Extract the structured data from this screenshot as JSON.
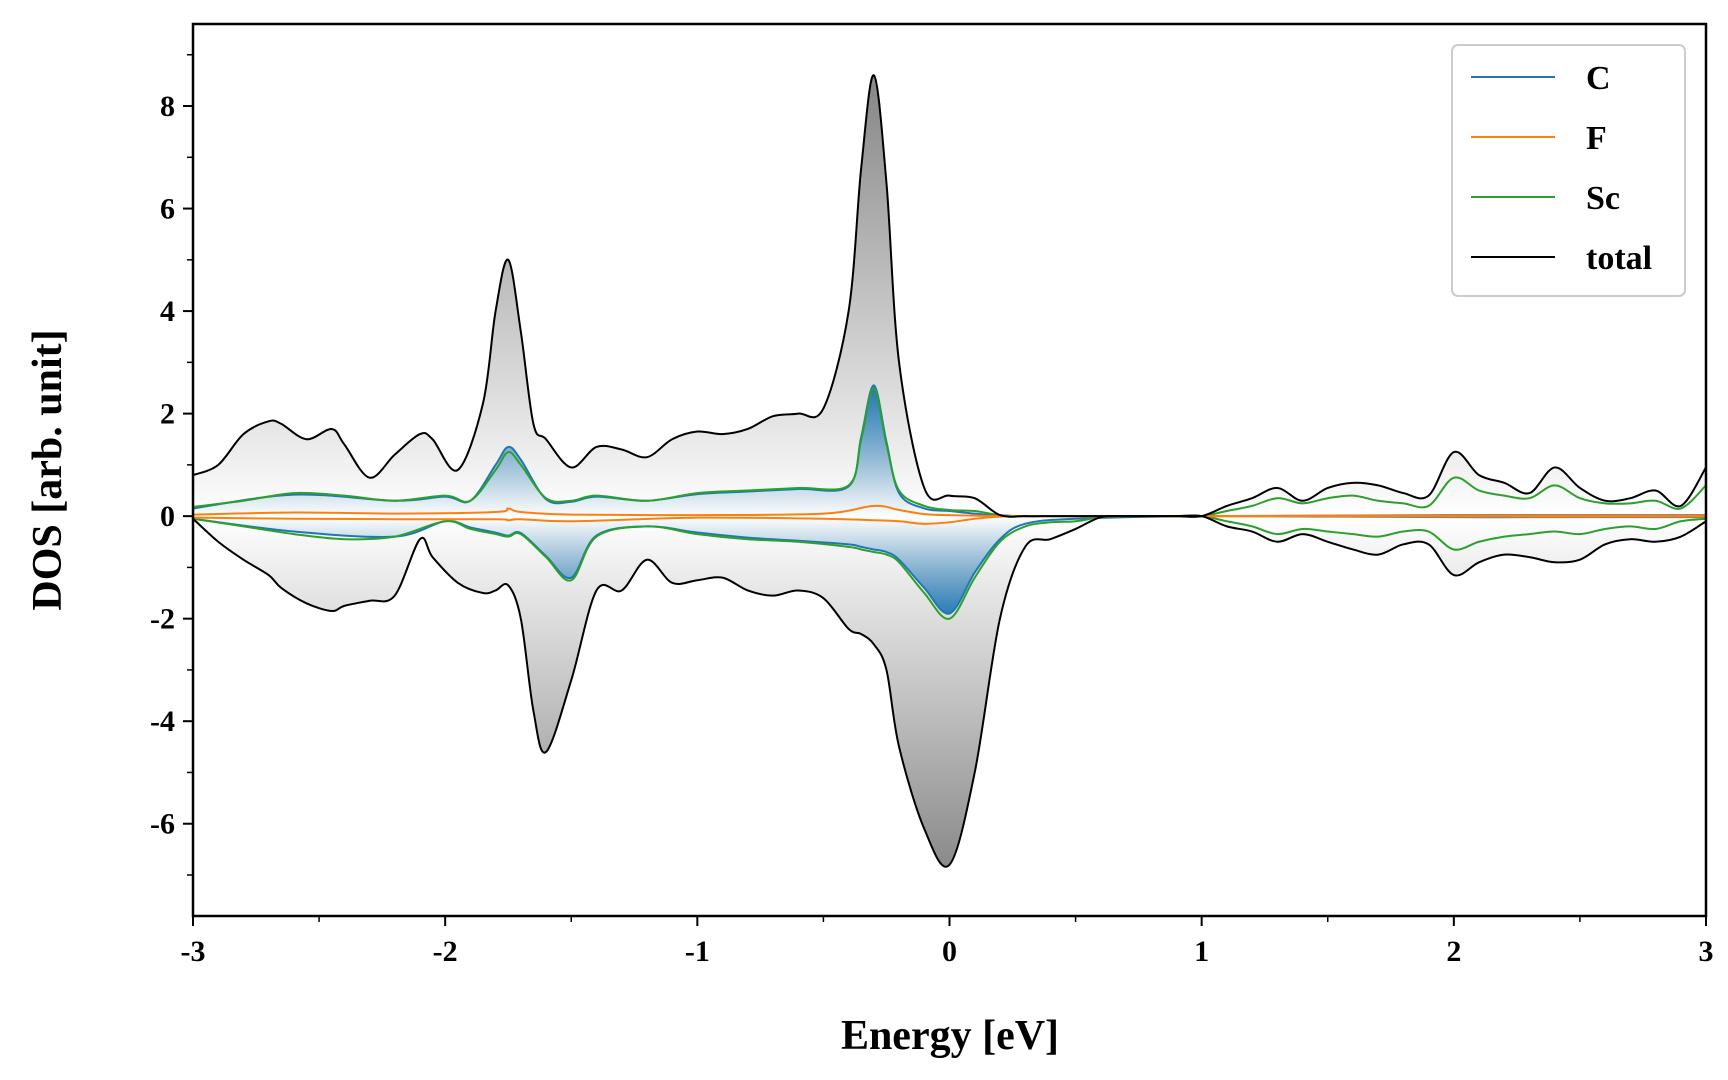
{
  "chart_data": {
    "type": "line",
    "title": "",
    "xlabel": "Energy [eV]",
    "ylabel": "DOS [arb. unit]",
    "xlim": [
      -3,
      3
    ],
    "ylim": [
      -7.8,
      9.6
    ],
    "xticks": [
      -3,
      -2,
      -1,
      0,
      1,
      2,
      3
    ],
    "xtick_labels": [
      "-3",
      "-2",
      "-1",
      "0",
      "1",
      "2",
      "3"
    ],
    "yticks": [
      -6,
      -4,
      -2,
      0,
      2,
      4,
      6,
      8
    ],
    "ytick_labels": [
      "-6",
      "-4",
      "-2",
      "0",
      "2",
      "4",
      "6",
      "8"
    ],
    "legend_position": "top-right",
    "grid": false,
    "colors": {
      "C": "#1f77b4",
      "F": "#ff7f0e",
      "Sc": "#2ca02c",
      "total": "#000000",
      "total_fill": "#8a8a8a"
    },
    "series": [
      {
        "name": "total",
        "x": [
          -3.0,
          -2.9,
          -2.8,
          -2.7,
          -2.65,
          -2.55,
          -2.45,
          -2.4,
          -2.3,
          -2.2,
          -2.1,
          -2.05,
          -1.95,
          -1.85,
          -1.8,
          -1.75,
          -1.7,
          -1.65,
          -1.6,
          -1.5,
          -1.4,
          -1.3,
          -1.2,
          -1.1,
          -1.0,
          -0.9,
          -0.8,
          -0.7,
          -0.6,
          -0.5,
          -0.4,
          -0.35,
          -0.3,
          -0.25,
          -0.2,
          -0.1,
          0.0,
          0.1,
          0.2,
          0.3,
          0.4,
          0.5,
          0.6,
          0.7,
          0.8,
          0.9,
          1.0,
          1.1,
          1.2,
          1.3,
          1.4,
          1.5,
          1.6,
          1.7,
          1.8,
          1.9,
          2.0,
          2.1,
          2.2,
          2.3,
          2.4,
          2.5,
          2.6,
          2.7,
          2.8,
          2.9,
          3.0
        ],
        "up": [
          0.8,
          1.0,
          1.6,
          1.85,
          1.8,
          1.5,
          1.7,
          1.4,
          0.75,
          1.2,
          1.6,
          1.5,
          0.9,
          2.2,
          4.0,
          5.0,
          3.6,
          1.8,
          1.5,
          0.95,
          1.35,
          1.3,
          1.15,
          1.5,
          1.65,
          1.6,
          1.7,
          1.95,
          2.0,
          2.1,
          4.0,
          6.8,
          8.6,
          6.5,
          3.0,
          0.55,
          0.4,
          0.35,
          0.02,
          0.0,
          0.0,
          0.0,
          0.0,
          0.0,
          0.0,
          0.0,
          0.0,
          0.2,
          0.35,
          0.55,
          0.3,
          0.55,
          0.65,
          0.6,
          0.45,
          0.4,
          1.25,
          0.8,
          0.65,
          0.45,
          0.95,
          0.55,
          0.3,
          0.35,
          0.5,
          0.2,
          0.95
        ],
        "down": [
          -0.05,
          -0.5,
          -0.85,
          -1.15,
          -1.4,
          -1.7,
          -1.85,
          -1.75,
          -1.65,
          -1.55,
          -0.45,
          -0.8,
          -1.3,
          -1.5,
          -1.45,
          -1.35,
          -2.0,
          -3.8,
          -4.6,
          -3.2,
          -1.45,
          -1.45,
          -0.85,
          -1.3,
          -1.25,
          -1.2,
          -1.45,
          -1.55,
          -1.45,
          -1.6,
          -2.2,
          -2.3,
          -2.5,
          -3.0,
          -4.5,
          -6.1,
          -6.8,
          -5.0,
          -2.0,
          -0.6,
          -0.45,
          -0.25,
          -0.02,
          0.0,
          0.0,
          0.0,
          0.0,
          -0.2,
          -0.3,
          -0.5,
          -0.35,
          -0.5,
          -0.65,
          -0.75,
          -0.55,
          -0.55,
          -1.15,
          -0.9,
          -0.75,
          -0.8,
          -0.9,
          -0.85,
          -0.55,
          -0.45,
          -0.5,
          -0.4,
          -0.1
        ]
      },
      {
        "name": "Sc",
        "x": [
          -3.0,
          -2.8,
          -2.6,
          -2.4,
          -2.2,
          -2.0,
          -1.9,
          -1.8,
          -1.75,
          -1.7,
          -1.6,
          -1.5,
          -1.4,
          -1.2,
          -1.0,
          -0.8,
          -0.6,
          -0.4,
          -0.35,
          -0.3,
          -0.25,
          -0.2,
          -0.1,
          0.0,
          0.1,
          0.2,
          0.3,
          0.4,
          0.5,
          0.6,
          0.7,
          0.8,
          0.9,
          1.0,
          1.1,
          1.2,
          1.3,
          1.4,
          1.5,
          1.6,
          1.7,
          1.8,
          1.9,
          2.0,
          2.1,
          2.2,
          2.3,
          2.4,
          2.5,
          2.6,
          2.7,
          2.8,
          2.9,
          3.0
        ],
        "up": [
          0.18,
          0.3,
          0.45,
          0.4,
          0.3,
          0.4,
          0.3,
          0.9,
          1.25,
          1.0,
          0.35,
          0.3,
          0.4,
          0.3,
          0.45,
          0.5,
          0.55,
          0.6,
          1.5,
          2.5,
          1.4,
          0.5,
          0.2,
          0.12,
          0.1,
          0.02,
          0.0,
          0.0,
          0.0,
          0.0,
          0.0,
          0.0,
          0.0,
          0.0,
          0.1,
          0.2,
          0.35,
          0.25,
          0.35,
          0.4,
          0.3,
          0.25,
          0.2,
          0.75,
          0.5,
          0.4,
          0.35,
          0.6,
          0.35,
          0.25,
          0.25,
          0.3,
          0.15,
          0.6
        ],
        "down": [
          -0.05,
          -0.2,
          -0.35,
          -0.45,
          -0.4,
          -0.1,
          -0.25,
          -0.35,
          -0.4,
          -0.35,
          -0.8,
          -1.25,
          -0.4,
          -0.2,
          -0.35,
          -0.45,
          -0.5,
          -0.6,
          -0.65,
          -0.7,
          -0.75,
          -0.9,
          -1.5,
          -2.0,
          -1.2,
          -0.5,
          -0.2,
          -0.12,
          -0.1,
          -0.02,
          0.0,
          0.0,
          0.0,
          0.0,
          -0.1,
          -0.2,
          -0.35,
          -0.25,
          -0.3,
          -0.35,
          -0.4,
          -0.3,
          -0.3,
          -0.65,
          -0.5,
          -0.4,
          -0.35,
          -0.3,
          -0.35,
          -0.25,
          -0.2,
          -0.25,
          -0.1,
          -0.05
        ]
      },
      {
        "name": "C",
        "x": [
          -3.0,
          -2.6,
          -2.2,
          -2.0,
          -1.9,
          -1.8,
          -1.75,
          -1.7,
          -1.6,
          -1.5,
          -1.4,
          -1.2,
          -1.0,
          -0.8,
          -0.6,
          -0.4,
          -0.35,
          -0.3,
          -0.25,
          -0.2,
          -0.1,
          0.0,
          0.1,
          0.2,
          0.3,
          0.5,
          1.0,
          1.5,
          2.0,
          2.5,
          3.0
        ],
        "up": [
          0.15,
          0.42,
          0.3,
          0.38,
          0.3,
          1.0,
          1.35,
          1.1,
          0.33,
          0.28,
          0.38,
          0.3,
          0.43,
          0.48,
          0.53,
          0.58,
          1.55,
          2.55,
          1.45,
          0.45,
          0.15,
          0.1,
          0.05,
          0.01,
          0.0,
          0.0,
          0.0,
          0.01,
          0.02,
          0.02,
          0.02
        ],
        "down": [
          -0.05,
          -0.3,
          -0.4,
          -0.1,
          -0.22,
          -0.32,
          -0.38,
          -0.33,
          -0.78,
          -1.2,
          -0.38,
          -0.2,
          -0.32,
          -0.42,
          -0.48,
          -0.55,
          -0.6,
          -0.65,
          -0.7,
          -0.85,
          -1.4,
          -1.9,
          -1.1,
          -0.45,
          -0.15,
          -0.05,
          0.0,
          -0.01,
          -0.02,
          -0.02,
          -0.02
        ]
      },
      {
        "name": "F",
        "x": [
          -3.0,
          -2.6,
          -2.2,
          -1.8,
          -1.75,
          -1.7,
          -1.5,
          -1.0,
          -0.5,
          -0.3,
          -0.2,
          -0.1,
          0.0,
          0.1,
          0.2,
          0.3,
          1.0,
          2.0,
          3.0
        ],
        "up": [
          0.03,
          0.07,
          0.05,
          0.08,
          0.15,
          0.08,
          0.03,
          0.02,
          0.05,
          0.2,
          0.12,
          0.04,
          0.02,
          0.01,
          0.0,
          0.0,
          0.0,
          0.01,
          0.01
        ],
        "down": [
          -0.03,
          -0.05,
          -0.06,
          -0.06,
          -0.08,
          -0.06,
          -0.1,
          -0.03,
          -0.05,
          -0.08,
          -0.1,
          -0.15,
          -0.12,
          -0.05,
          -0.01,
          0.0,
          0.0,
          -0.01,
          -0.01
        ]
      }
    ]
  }
}
